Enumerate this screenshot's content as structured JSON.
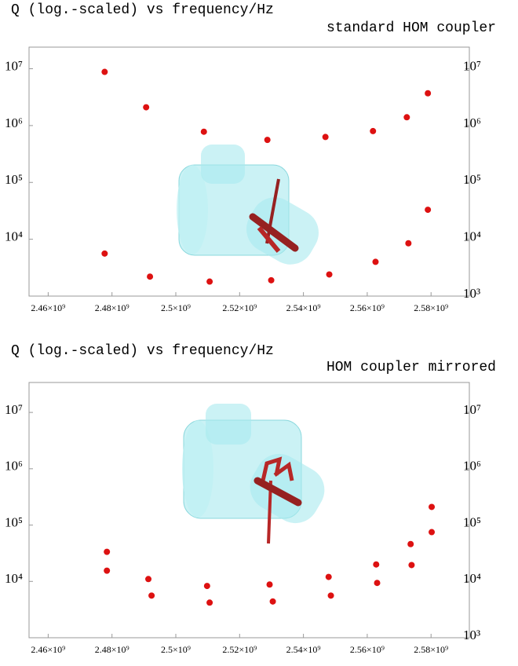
{
  "chart_data": [
    {
      "type": "scatter",
      "title": "Q  (log.-scaled)  vs  frequency/Hz",
      "subtitle": "standard HOM coupler",
      "x": [
        2477700000,
        2490700000,
        2508800000,
        2528700000,
        2546900000,
        2561800000,
        2572400000,
        2579000000,
        2477700000,
        2491900000,
        2510600000,
        2529900000,
        2548100000,
        2562600000,
        2572900000,
        2579000000
      ],
      "values": [
        8800000,
        2100000,
        780000,
        560000,
        630000,
        800000,
        1400000,
        3700000,
        5600,
        2200,
        1800,
        1900,
        2400,
        4000,
        8500,
        33000
      ],
      "color": "#dd1111",
      "log_y": true,
      "grid": false,
      "xlim": [
        2454000000,
        2592000000
      ],
      "ylim": [
        1000,
        24000000
      ],
      "xticks": [
        {
          "value": 2460000000,
          "label": "2.46×10⁹"
        },
        {
          "value": 2480000000,
          "label": "2.48×10⁹"
        },
        {
          "value": 2500000000,
          "label": "2.5×10⁹"
        },
        {
          "value": 2520000000,
          "label": "2.52×10⁹"
        },
        {
          "value": 2540000000,
          "label": "2.54×10⁹"
        },
        {
          "value": 2560000000,
          "label": "2.56×10⁹"
        },
        {
          "value": 2580000000,
          "label": "2.58×10⁹"
        }
      ],
      "yticks": [
        {
          "value": 1000,
          "label": "10³"
        },
        {
          "value": 10000,
          "label": "10⁴"
        },
        {
          "value": 100000,
          "label": "10⁵"
        },
        {
          "value": 1000000,
          "label": "10⁶"
        },
        {
          "value": 10000000,
          "label": "10⁷"
        }
      ]
    },
    {
      "type": "scatter",
      "title": "Q  (log.-scaled)  vs  frequency/Hz",
      "subtitle": "HOM coupler mirrored",
      "x": [
        2478400000,
        2478400000,
        2491400000,
        2492400000,
        2509800000,
        2510600000,
        2529400000,
        2530400000,
        2547900000,
        2548600000,
        2562800000,
        2563100000,
        2573600000,
        2573900000,
        2580200000,
        2580200000
      ],
      "values": [
        33500,
        15500,
        11000,
        5600,
        8300,
        4200,
        8800,
        4400,
        12000,
        5600,
        20000,
        9400,
        46000,
        19500,
        210000,
        75000
      ],
      "color": "#dd1111",
      "log_y": true,
      "grid": false,
      "xlim": [
        2454000000,
        2592000000
      ],
      "ylim": [
        1000,
        34000000
      ],
      "xticks": [
        {
          "value": 2460000000,
          "label": "2.46×10⁹"
        },
        {
          "value": 2480000000,
          "label": "2.48×10⁹"
        },
        {
          "value": 2500000000,
          "label": "2.5×10⁹"
        },
        {
          "value": 2520000000,
          "label": "2.52×10⁹"
        },
        {
          "value": 2540000000,
          "label": "2.54×10⁹"
        },
        {
          "value": 2560000000,
          "label": "2.56×10⁹"
        },
        {
          "value": 2580000000,
          "label": "2.58×10⁹"
        }
      ],
      "yticks": [
        {
          "value": 1000,
          "label": "10³"
        },
        {
          "value": 10000,
          "label": "10⁴"
        },
        {
          "value": 100000,
          "label": "10⁵"
        },
        {
          "value": 1000000,
          "label": "10⁶"
        },
        {
          "value": 10000000,
          "label": "10⁷"
        }
      ]
    }
  ]
}
